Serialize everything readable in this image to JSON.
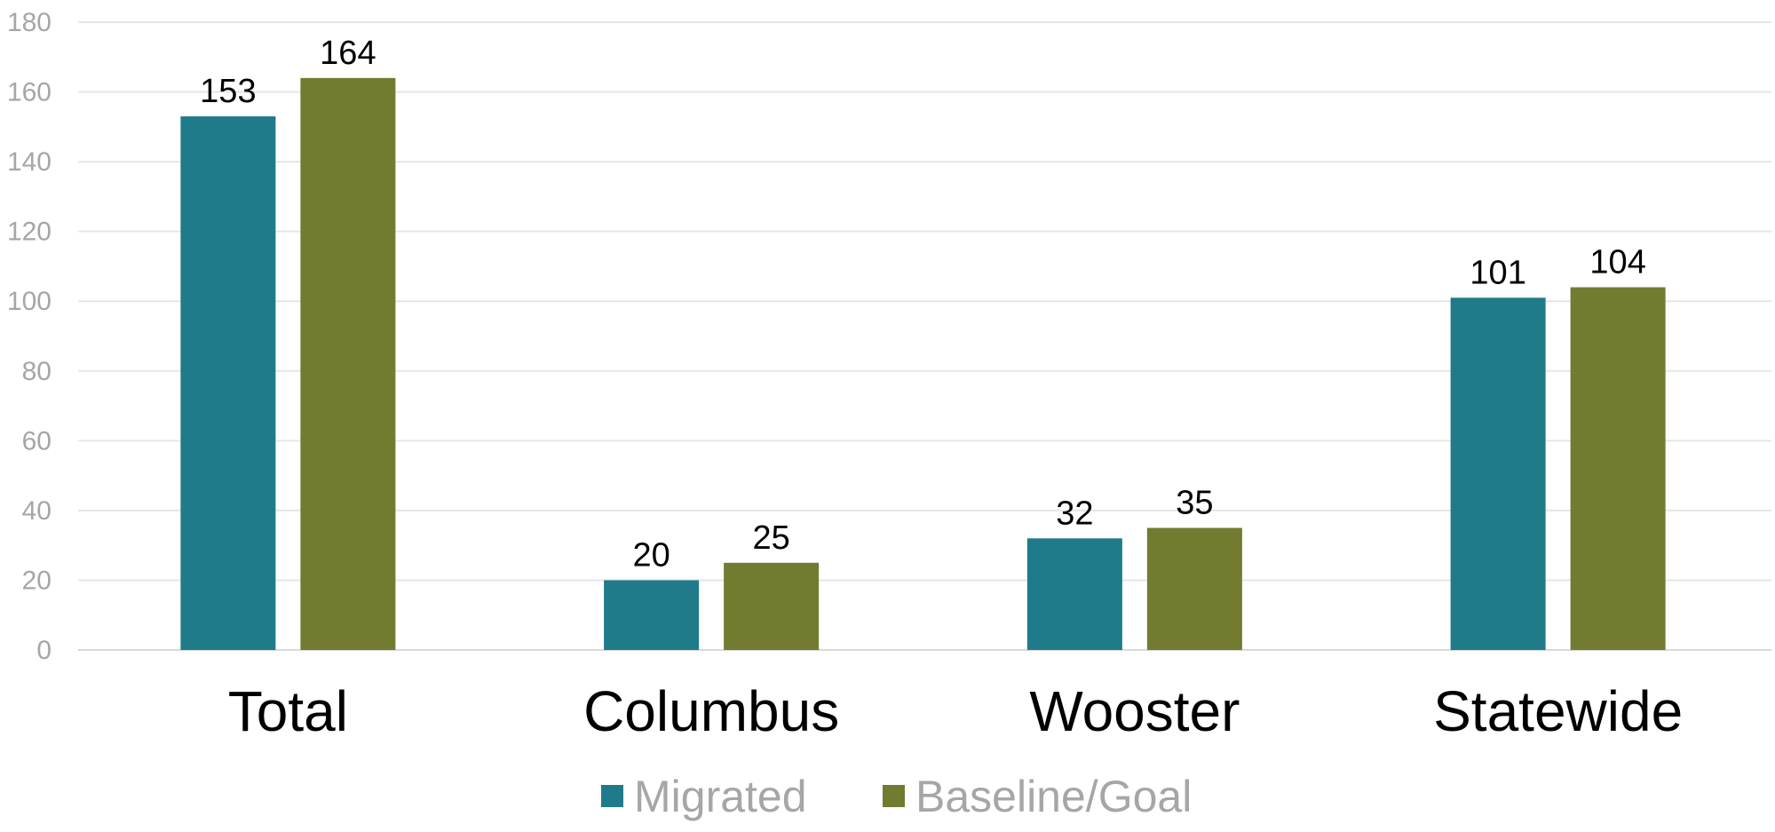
{
  "chart_data": {
    "type": "bar",
    "categories": [
      "Total",
      "Columbus",
      "Wooster",
      "Statewide"
    ],
    "series": [
      {
        "name": "Migrated",
        "values": [
          153,
          20,
          32,
          101
        ],
        "color": "#1f7b8a"
      },
      {
        "name": "Baseline/Goal",
        "values": [
          164,
          25,
          35,
          104
        ],
        "color": "#737b30"
      }
    ],
    "ylim": [
      0,
      180
    ],
    "yticks": [
      0,
      20,
      40,
      60,
      80,
      100,
      120,
      140,
      160,
      180
    ],
    "grid": true,
    "legend": "bottom-center",
    "data_labels": true
  }
}
